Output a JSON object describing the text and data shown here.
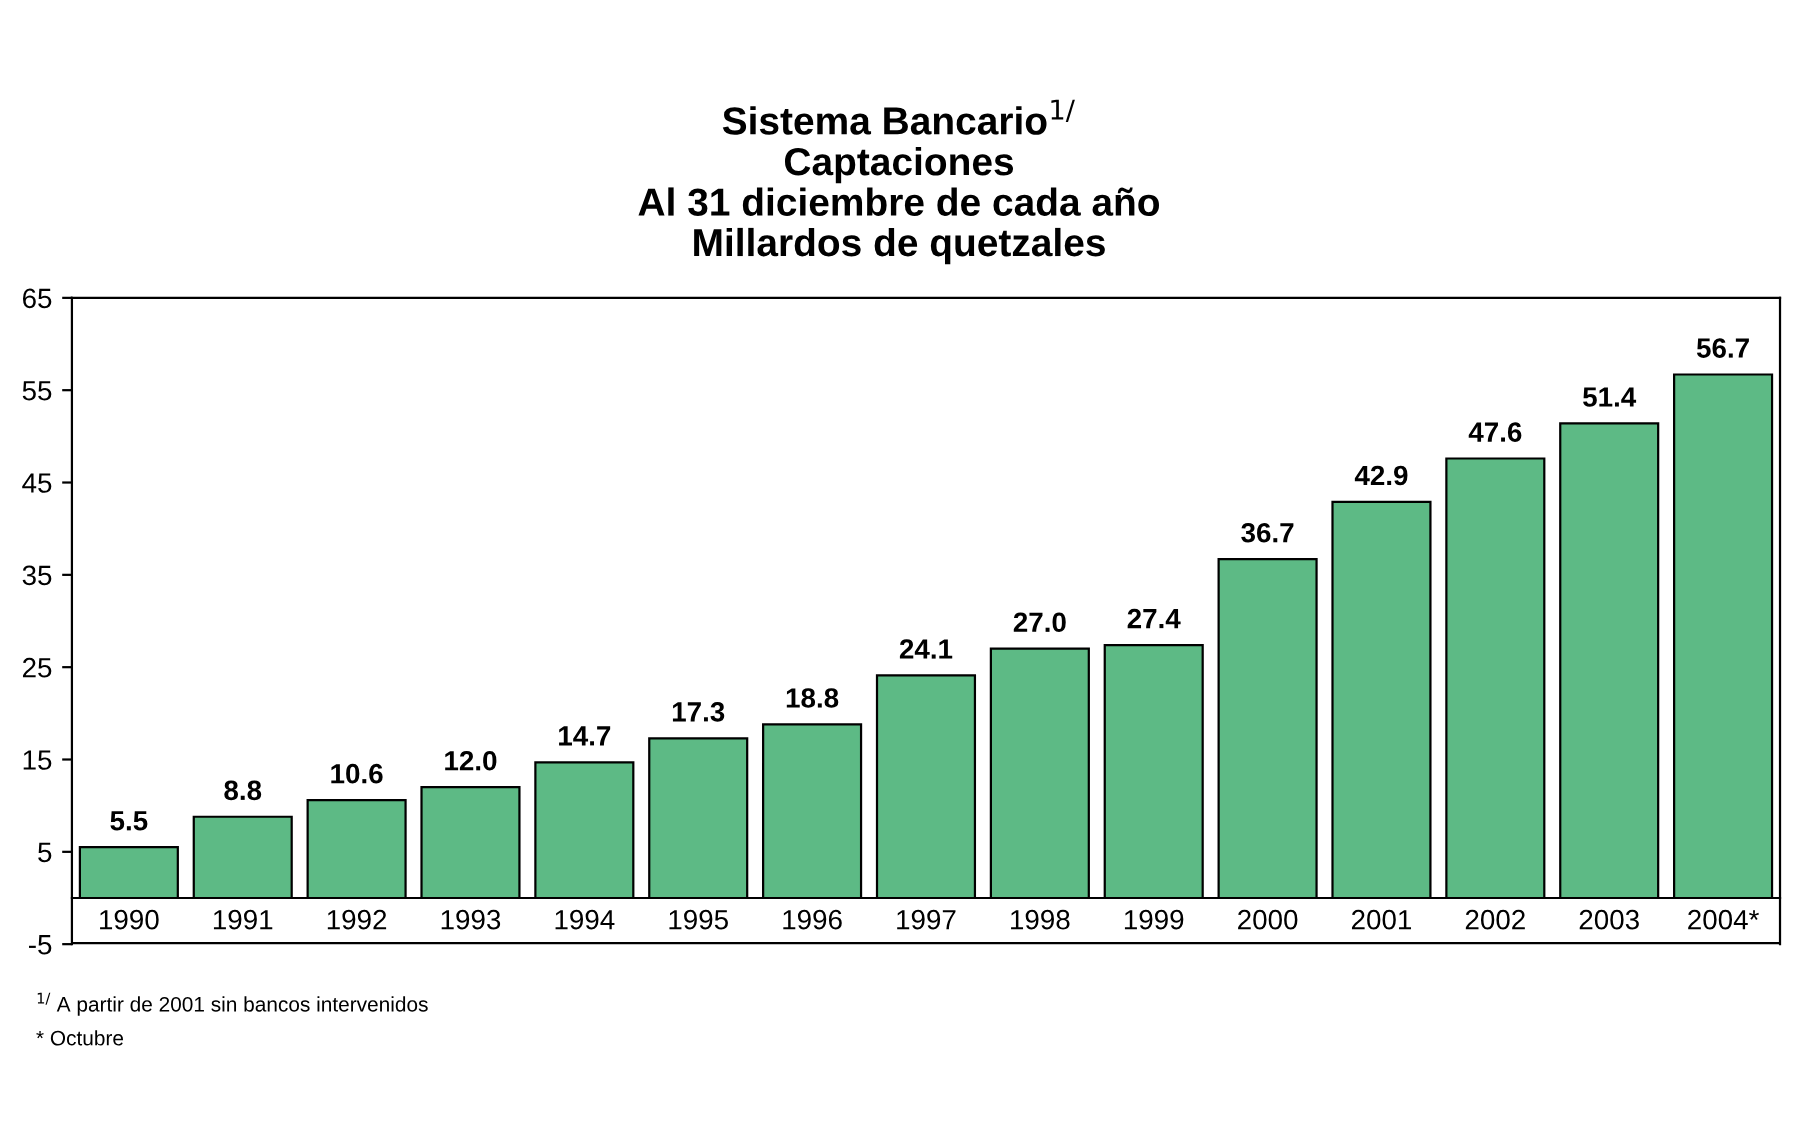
{
  "chart_data": {
    "type": "bar",
    "title": "Sistema Bancario$^{1/}$\nCaptaciones\nAl 31 diciembre de cada año\nMillardos de quetzales",
    "categories": [
      "1990",
      "1991",
      "1992",
      "1993",
      "1994",
      "1995",
      "1996",
      "1997",
      "1998",
      "1999",
      "2000",
      "2001",
      "2002",
      "2003",
      "2004*"
    ],
    "values": [
      5.5,
      8.8,
      10.6,
      12.0,
      14.7,
      17.3,
      18.8,
      24.1,
      27.0,
      27.4,
      36.7,
      42.9,
      47.6,
      51.4,
      56.7
    ],
    "value_labels": [
      "5.5",
      "8.8",
      "10.6",
      "12.0",
      "14.7",
      "17.3",
      "18.8",
      "24.1",
      "27.0",
      "27.4",
      "36.7",
      "42.9",
      "47.6",
      "51.4",
      "56.7"
    ],
    "color": "#5dba85",
    "ylim": [
      -5,
      65
    ],
    "yticks": [
      -5,
      5,
      15,
      25,
      35,
      45,
      55,
      65
    ],
    "grid": false,
    "legend": false,
    "annotations": [
      "$^{1/}$ A partir de 2001 sin bancos intervenidos",
      "* Octubre"
    ]
  }
}
